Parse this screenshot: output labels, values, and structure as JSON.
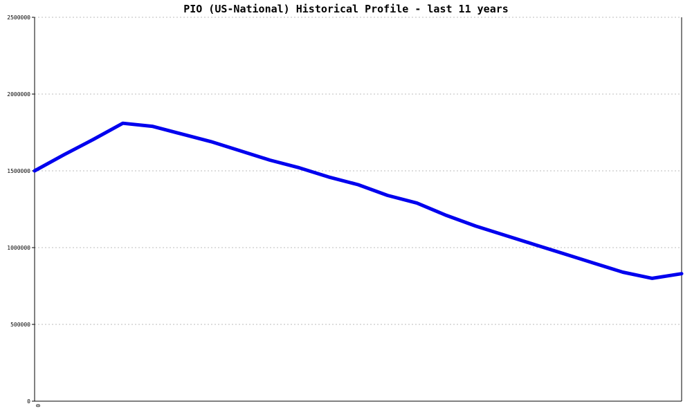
{
  "chart_data": {
    "type": "line",
    "title": "PIO (US-National) Historical Profile - last 11 years",
    "xlabel": "",
    "ylabel": "",
    "x_tick_labels": [
      "0"
    ],
    "ylim": [
      0,
      2500000
    ],
    "y_ticks": [
      0,
      500000,
      1000000,
      1500000,
      2000000,
      2500000
    ],
    "y_tick_labels": [
      "0",
      "500000",
      "1000000",
      "1500000",
      "2000000",
      "2500000"
    ],
    "grid": true,
    "series": [
      {
        "color": "#0000ee",
        "x": [
          0,
          1,
          2,
          3,
          4,
          5,
          6,
          7,
          8,
          9,
          10,
          11,
          12,
          13,
          14,
          15,
          16,
          17,
          18,
          19,
          20,
          21,
          22
        ],
        "values": [
          1500000,
          1605000,
          1705000,
          1810000,
          1790000,
          1740000,
          1690000,
          1630000,
          1570000,
          1520000,
          1460000,
          1410000,
          1340000,
          1290000,
          1210000,
          1140000,
          1080000,
          1020000,
          960000,
          900000,
          840000,
          800000,
          830000
        ]
      }
    ],
    "x_domain": [
      0,
      22
    ]
  }
}
